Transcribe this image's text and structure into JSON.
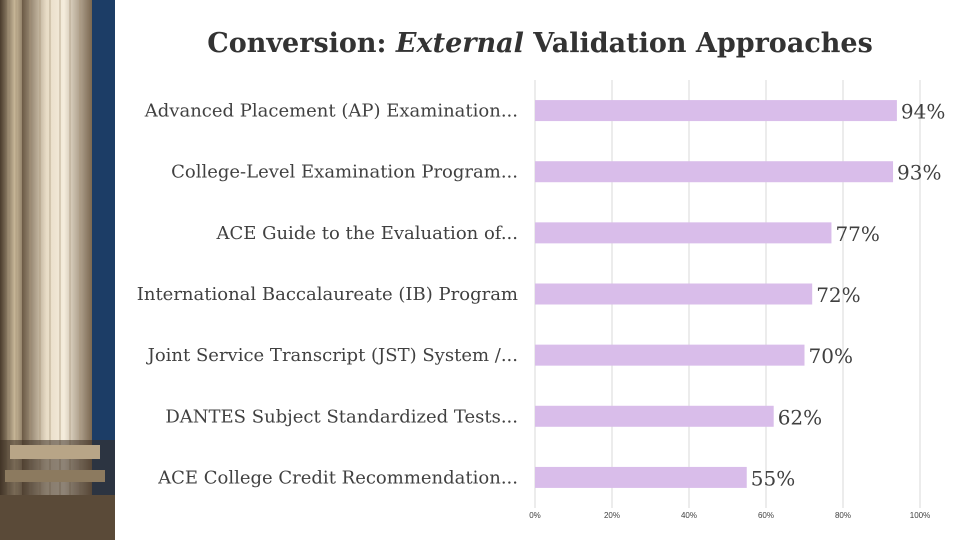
{
  "title": {
    "part1": "Conversion: ",
    "emphasis": "External",
    "part2": " Validation Approaches"
  },
  "colors": {
    "bar": "#d9bdea",
    "grid": "#d9d9d9",
    "text": "#404040",
    "title": "#333333",
    "side_panel": "#1c3d66"
  },
  "side_image": {
    "icon": "classical-columns-photo"
  },
  "chart_data": {
    "type": "bar",
    "orientation": "horizontal",
    "title": "Conversion: External Validation Approaches",
    "categories": [
      "Advanced Placement (AP) Examination...",
      "College-Level Examination Program...",
      "ACE Guide to the Evaluation of...",
      "International Baccalaureate (IB) Program",
      "Joint Service Transcript (JST) System /...",
      "DANTES Subject Standardized Tests...",
      "ACE College Credit Recommendation..."
    ],
    "values": [
      94,
      93,
      77,
      72,
      70,
      62,
      55
    ],
    "data_labels": [
      "94%",
      "93%",
      "77%",
      "72%",
      "70%",
      "62%",
      "55%"
    ],
    "xlim": [
      0,
      100
    ],
    "x_ticks": [
      "0%",
      "20%",
      "40%",
      "60%",
      "80%",
      "100%"
    ],
    "xlabel": "",
    "ylabel": "",
    "grid": true,
    "legend": "none"
  }
}
